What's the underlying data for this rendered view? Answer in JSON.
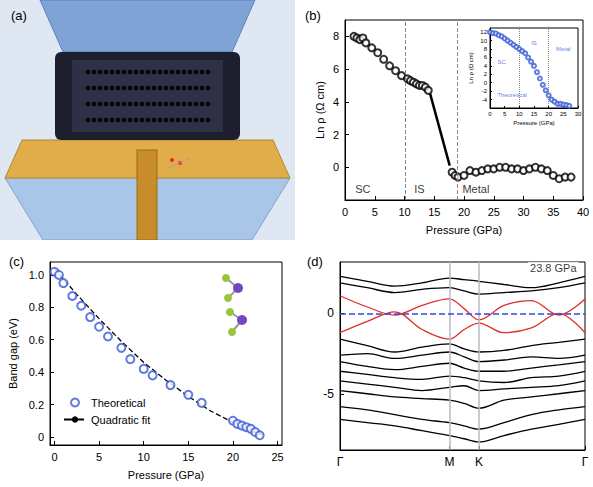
{
  "chart_data": [
    {
      "type": "illustration",
      "title": "(a)"
    },
    {
      "type": "scatter",
      "title": "(b)",
      "xlabel": "Pressure (GPa)",
      "ylabel": "Ln ρ (Ω cm)",
      "xlim": [
        0,
        40
      ],
      "xticks": [
        0,
        5,
        10,
        15,
        20,
        25,
        30,
        35,
        40
      ],
      "ylim": [
        -2,
        9
      ],
      "yticks": [
        0,
        2,
        4,
        6,
        8
      ],
      "grid": false,
      "vlines": [
        10.2,
        18.8
      ],
      "vline_style": "dashed",
      "annotations": [
        {
          "text": "SC",
          "x": 3,
          "y": -1.3
        },
        {
          "text": "IS",
          "x": 12.5,
          "y": -1.3
        },
        {
          "text": "Metal",
          "x": 22,
          "y": -1.3
        }
      ],
      "series": [
        {
          "type": "scatter",
          "marker": "hollow",
          "color": "#000000",
          "x": [
            1.5,
            2,
            2.5,
            3,
            3.5,
            4.5,
            5.5,
            6.5,
            7.5,
            8.5,
            9.5,
            10.5,
            11,
            11.5,
            12,
            12.5,
            13,
            13.5,
            14,
            18,
            18.5,
            19,
            20,
            21,
            22,
            23,
            24,
            25,
            26,
            27,
            28,
            29,
            30,
            31,
            32,
            33,
            34,
            35,
            36,
            37,
            38
          ],
          "values": [
            8.0,
            7.9,
            7.8,
            7.9,
            7.6,
            7.3,
            7.0,
            6.6,
            6.2,
            5.9,
            5.6,
            5.4,
            5.3,
            5.2,
            5.1,
            5.0,
            5.0,
            4.9,
            4.7,
            -0.3,
            -0.5,
            -0.6,
            -0.5,
            -0.2,
            -0.3,
            -0.2,
            -0.1,
            -0.1,
            0.0,
            0.0,
            -0.1,
            -0.1,
            -0.2,
            -0.1,
            0.0,
            -0.1,
            -0.2,
            -0.5,
            -0.7,
            -0.6,
            -0.6
          ]
        },
        {
          "type": "line",
          "line_style": "solid",
          "color": "#000000",
          "x": [
            14.3,
            17.6
          ],
          "values": [
            4.5,
            0.1
          ]
        }
      ]
    },
    {
      "type": "scatter",
      "xlabel": "Pressure (GPa)",
      "ylabel": "Ln ρ (Ω cm)",
      "xlim": [
        0,
        30
      ],
      "xticks": [
        0,
        5,
        10,
        15,
        20,
        25,
        30
      ],
      "ylim": [
        -6,
        13
      ],
      "yticks": [
        -4,
        -2,
        0,
        2,
        4,
        6,
        8,
        10,
        12
      ],
      "grid": false,
      "vlines": [
        10,
        20
      ],
      "vline_style": "dotted",
      "annotations": [
        {
          "text": "SC",
          "x": 4,
          "y": 5
        },
        {
          "text": "IS",
          "x": 15,
          "y": 9.5
        },
        {
          "text": "Metal",
          "x": 25,
          "y": 8
        },
        {
          "text": "Theoretical",
          "x": 7.5,
          "y": -3
        }
      ],
      "series": [
        {
          "type": "scatter",
          "marker": "hollow",
          "color": "#3b5bd6",
          "x": [
            0,
            1,
            2,
            3,
            4,
            5,
            6,
            7,
            8,
            9,
            10,
            11,
            12,
            13,
            14,
            15,
            16,
            17,
            18,
            19,
            20,
            21,
            22,
            23,
            24,
            25,
            26,
            27
          ],
          "values": [
            12,
            11.8,
            11.7,
            11.3,
            11,
            10.5,
            10,
            9.5,
            9,
            8.5,
            8,
            7.5,
            7,
            6,
            5,
            4,
            2.5,
            1,
            -0.5,
            -1.8,
            -3,
            -4,
            -4.5,
            -5,
            -5,
            -5.2,
            -5.3,
            -5.5
          ]
        }
      ]
    },
    {
      "type": "scatter",
      "title": "(c)",
      "xlabel": "Pressure (GPa)",
      "ylabel": "Band gap (eV)",
      "xlim": [
        -0.5,
        25.5
      ],
      "xticks": [
        0,
        5,
        10,
        15,
        20,
        25
      ],
      "ylim": [
        -0.05,
        1.08
      ],
      "yticks": [
        0,
        0.2,
        0.4,
        0.6,
        0.8,
        {
          "value": 1,
          "label": "1.0"
        }
      ],
      "grid": false,
      "legend": "lower left",
      "series": [
        {
          "name": "Theoretical",
          "type": "scatter",
          "marker": "hollow",
          "color": "#3b5bd6",
          "x": [
            0,
            0.5,
            1,
            2,
            3,
            4,
            5,
            6,
            7.5,
            8.5,
            10,
            11,
            13,
            15,
            16.5,
            20,
            20.5,
            21,
            21.5,
            22,
            22.5,
            23
          ],
          "values": [
            1.02,
            1.0,
            0.95,
            0.87,
            0.81,
            0.74,
            0.68,
            0.62,
            0.55,
            0.48,
            0.42,
            0.38,
            0.32,
            0.26,
            0.21,
            0.1,
            0.08,
            0.07,
            0.06,
            0.05,
            0.03,
            0.01
          ]
        },
        {
          "name": "Quadratic fit",
          "type": "line",
          "line_style": "dashed",
          "color": "#000000",
          "x": [
            0,
            2.5,
            5,
            7.5,
            10,
            12.5,
            15,
            17.5,
            20,
            22.5,
            23.5
          ],
          "values": [
            1.04,
            0.88,
            0.73,
            0.59,
            0.46,
            0.35,
            0.25,
            0.16,
            0.09,
            0.03,
            0.01
          ]
        }
      ]
    },
    {
      "type": "line",
      "title": "(d)",
      "xlim": [
        0,
        2.24
      ],
      "xticks": [
        {
          "value": 0,
          "label": "Γ"
        },
        {
          "value": 1,
          "label": "M"
        },
        {
          "value": 1.27,
          "label": "K"
        },
        {
          "value": 2.24,
          "label": "Γ"
        }
      ],
      "ylim": [
        -8.5,
        3.2
      ],
      "yticks": [
        -5,
        0
      ],
      "grid": false,
      "vlines": [
        1,
        1.27
      ],
      "vline_style": "solid",
      "hline": 0,
      "annotations": [
        {
          "text": "23.8 GPa",
          "x": 1.95,
          "y": 2.8
        }
      ],
      "x": [
        0,
        0.25,
        0.5,
        0.75,
        1.0,
        1.135,
        1.27,
        1.5,
        1.75,
        2.0,
        2.24
      ],
      "series": [
        {
          "color": "#000000",
          "values": [
            2.3,
            2.0,
            1.7,
            1.9,
            2.2,
            2.1,
            2.0,
            1.8,
            1.6,
            1.9,
            2.3
          ]
        },
        {
          "color": "#000000",
          "values": [
            1.9,
            1.6,
            1.3,
            1.5,
            1.6,
            1.4,
            1.2,
            1.3,
            1.4,
            1.6,
            1.9
          ]
        },
        {
          "color": "#e0302a",
          "values": [
            1.1,
            0.4,
            -0.1,
            0.5,
            0.9,
            0.3,
            -0.4,
            0.5,
            0.8,
            -0.1,
            0.9
          ]
        },
        {
          "color": "#e0302a",
          "values": [
            -1.2,
            -0.5,
            0.1,
            -1.0,
            -1.6,
            -1.0,
            -0.6,
            -1.2,
            -0.9,
            0.0,
            -1.2
          ]
        },
        {
          "color": "#000000",
          "values": [
            -1.6,
            -2.0,
            -2.4,
            -2.1,
            -1.9,
            -2.2,
            -2.4,
            -2.3,
            -2.0,
            -1.8,
            -1.6
          ]
        },
        {
          "color": "#000000",
          "values": [
            -2.6,
            -2.5,
            -2.8,
            -2.6,
            -2.4,
            -2.7,
            -3.0,
            -2.9,
            -2.7,
            -2.8,
            -2.6
          ]
        },
        {
          "color": "#000000",
          "values": [
            -3.0,
            -3.3,
            -3.5,
            -3.3,
            -3.1,
            -3.4,
            -3.6,
            -3.6,
            -3.4,
            -3.2,
            -3.0
          ]
        },
        {
          "color": "#000000",
          "values": [
            -3.6,
            -3.8,
            -4.0,
            -4.1,
            -3.9,
            -4.0,
            -4.2,
            -4.3,
            -4.0,
            -3.9,
            -3.6
          ]
        },
        {
          "color": "#000000",
          "values": [
            -4.2,
            -4.4,
            -4.6,
            -4.8,
            -4.6,
            -4.5,
            -4.8,
            -4.7,
            -4.6,
            -4.5,
            -4.2
          ]
        },
        {
          "color": "#000000",
          "values": [
            -4.8,
            -5.0,
            -5.2,
            -5.3,
            -5.4,
            -5.6,
            -5.9,
            -5.4,
            -5.2,
            -5.0,
            -4.8
          ]
        },
        {
          "color": "#000000",
          "values": [
            -5.8,
            -6.0,
            -6.3,
            -6.6,
            -6.8,
            -7.0,
            -7.2,
            -6.8,
            -6.3,
            -6.0,
            -5.8
          ]
        },
        {
          "color": "#000000",
          "values": [
            -6.6,
            -6.8,
            -7.0,
            -7.3,
            -7.6,
            -7.8,
            -8.0,
            -7.6,
            -7.2,
            -6.9,
            -6.6
          ]
        }
      ]
    }
  ]
}
